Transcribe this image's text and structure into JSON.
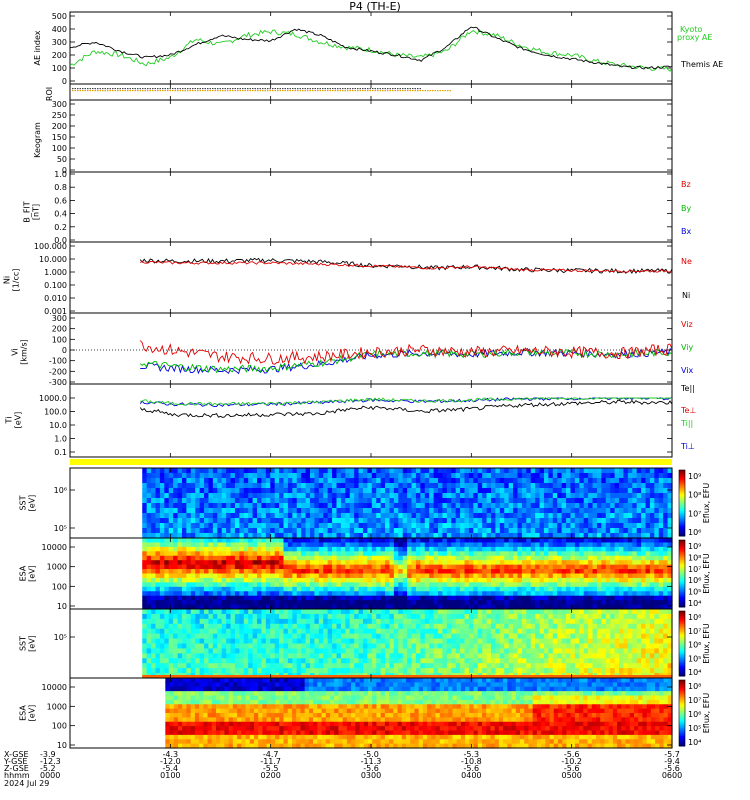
{
  "title": "P4  (TH-E)",
  "colors": {
    "kyoto": "#22cc22",
    "themis": "#000000",
    "bz": "#e00000",
    "by": "#00bb00",
    "bx": "#0000dd",
    "ne": "#e00000",
    "ni": "#000000",
    "vz": "#e00000",
    "vy": "#00bb00",
    "vx": "#0000dd",
    "te": "#000000",
    "teperp": "#e00000",
    "tipar": "#22cc22",
    "tiperp": "#0000dd",
    "roi_bar": "#ffff00"
  },
  "panels": {
    "ae": {
      "ylabel": "AE index",
      "ticks": [
        "500",
        "400",
        "300",
        "200",
        "100",
        "0"
      ],
      "legend_kyoto": "Kyoto\nproxy AE",
      "legend_themis": "Themis AE"
    },
    "roi": {
      "ylabel": "ROI"
    },
    "keogram": {
      "ylabel": "Keogram",
      "ticks": [
        "300",
        "250",
        "200",
        "150",
        "100",
        "50",
        "0"
      ]
    },
    "bfit": {
      "ylabel": "B_FIT\n[nT]",
      "ticks": [
        "1.0",
        "0.8",
        "0.6",
        "0.4",
        "0.2",
        "0.0"
      ],
      "legend": [
        "Bz",
        "By",
        "Bx"
      ]
    },
    "ni": {
      "ylabel": "Ni\n[1/cc]",
      "ticks": [
        "100.000",
        "10.000",
        "1.000",
        "0.100",
        "0.010",
        "0.001"
      ],
      "legend": [
        "Ne",
        "Ni"
      ]
    },
    "vi": {
      "ylabel": "Vi\n[km/s]",
      "ticks": [
        "300",
        "200",
        "100",
        "0",
        "-100",
        "-200",
        "-300"
      ],
      "legend": [
        "Viz",
        "Viy",
        "Vix"
      ]
    },
    "ti": {
      "ylabel": "Ti\n[eV]",
      "ticks": [
        "1000.0",
        "100.0",
        "10.0",
        "1.0",
        "0.1"
      ],
      "legend": [
        "Te||",
        "Te⊥",
        "Ti||",
        "Ti⊥"
      ]
    },
    "sst_e": {
      "ylabel": "SST\n[eV]",
      "ticks": [
        "10⁶",
        "10⁵"
      ],
      "cbar_ticks": [
        "10⁹",
        "10⁸",
        "10⁷",
        "10⁶"
      ],
      "cbar_label": "Eflux, EFU"
    },
    "esa_e": {
      "ylabel": "ESA\n[eV]",
      "ticks": [
        "10000",
        "1000",
        "100",
        "10"
      ],
      "cbar_ticks": [
        "10⁹",
        "10⁸",
        "10⁷",
        "10⁶",
        "10⁵",
        "10⁴"
      ],
      "cbar_label": "Eflux, EFU"
    },
    "sst_i": {
      "ylabel": "SST\n[eV]",
      "ticks": [
        "10⁵"
      ],
      "cbar_ticks": [
        "10⁸",
        "10⁷",
        "10⁶",
        "10⁵",
        "10⁴"
      ],
      "cbar_label": "Eflux, EFU"
    },
    "esa_i": {
      "ylabel": "ESA\n[eV]",
      "ticks": [
        "10000",
        "1000",
        "100",
        "10"
      ],
      "cbar_ticks": [
        "10⁸",
        "10⁷",
        "10⁶",
        "10⁵",
        "10⁴"
      ],
      "cbar_label": "Eflux, EFU"
    }
  },
  "footer": {
    "row_labels": [
      "X-GSE",
      "Y-GSE",
      "Z-GSE",
      "hhmm",
      "2024 Jul 29"
    ],
    "columns": [
      {
        "x": "-3.9",
        "y": "-12.3",
        "z": "-5.2",
        "t": "0000"
      },
      {
        "x": "-4.3",
        "y": "-12.0",
        "z": "-5.4",
        "t": "0100"
      },
      {
        "x": "-4.7",
        "y": "-11.7",
        "z": "-5.5",
        "t": "0200"
      },
      {
        "x": "-5.0",
        "y": "-11.3",
        "z": "-5.6",
        "t": "0300"
      },
      {
        "x": "-5.3",
        "y": "-10.8",
        "z": "-5.6",
        "t": "0400"
      },
      {
        "x": "-5.6",
        "y": "-10.2",
        "z": "-5.6",
        "t": "0500"
      },
      {
        "x": "-5.7",
        "y": "-9.4",
        "z": "-5.6",
        "t": "0600"
      }
    ]
  },
  "chart_data": {
    "type": "line",
    "x_unit": "hours since 2024-07-29 00:00 UT",
    "xlim": [
      0,
      6
    ],
    "series": [
      {
        "panel": "ae",
        "name": "Kyoto proxy AE",
        "x": [
          0,
          0.25,
          0.5,
          0.75,
          1.0,
          1.25,
          1.5,
          1.75,
          2.0,
          2.25,
          2.5,
          2.75,
          3.0,
          3.25,
          3.5,
          3.75,
          4.0,
          4.25,
          4.5,
          4.75,
          5.0,
          5.25,
          5.5,
          5.75,
          6.0
        ],
        "values": [
          120,
          230,
          200,
          130,
          180,
          320,
          280,
          350,
          380,
          360,
          300,
          260,
          240,
          200,
          180,
          230,
          390,
          350,
          270,
          220,
          200,
          150,
          120,
          100,
          90
        ]
      },
      {
        "panel": "ae",
        "name": "Themis AE",
        "x": [
          0,
          0.25,
          0.5,
          0.75,
          1.0,
          1.25,
          1.5,
          1.75,
          2.0,
          2.25,
          2.5,
          2.75,
          3.0,
          3.25,
          3.5,
          3.75,
          4.0,
          4.25,
          4.5,
          4.75,
          5.0,
          5.25,
          5.5,
          5.75,
          6.0
        ],
        "values": [
          260,
          300,
          230,
          180,
          200,
          280,
          350,
          320,
          310,
          400,
          350,
          260,
          230,
          200,
          160,
          260,
          420,
          330,
          250,
          200,
          170,
          140,
          110,
          100,
          110
        ]
      },
      {
        "panel": "ni",
        "name": "Ne",
        "x": [
          0.7,
          1.0,
          1.5,
          2.0,
          2.5,
          3.0,
          3.3,
          3.6,
          4.0,
          4.5,
          5.0,
          5.5,
          6.0
        ],
        "values": [
          6,
          5,
          5,
          5,
          4,
          3,
          2.5,
          2,
          2.5,
          1.5,
          1.3,
          1.2,
          1.2
        ]
      },
      {
        "panel": "ni",
        "name": "Ni",
        "x": [
          0.7,
          1.0,
          1.5,
          2.0,
          2.5,
          3.0,
          3.3,
          3.6,
          4.0,
          4.5,
          5.0,
          5.5,
          6.0
        ],
        "values": [
          8,
          7,
          7,
          8,
          6,
          3,
          3,
          2,
          2.5,
          1.5,
          1.3,
          1.2,
          1.2
        ]
      },
      {
        "panel": "vi",
        "name": "Viz",
        "x": [
          0.7,
          1.0,
          1.5,
          2.0,
          2.5,
          3.0,
          3.5,
          4.0,
          4.5,
          5.0,
          5.5,
          6.0
        ],
        "values": [
          50,
          0,
          -60,
          -80,
          -60,
          -20,
          0,
          -20,
          -10,
          -20,
          -30,
          10
        ]
      },
      {
        "panel": "vi",
        "name": "Viy",
        "x": [
          0.7,
          1.0,
          1.5,
          2.0,
          2.5,
          3.0,
          3.5,
          4.0,
          4.5,
          5.0,
          5.5,
          6.0
        ],
        "values": [
          -120,
          -150,
          -180,
          -170,
          -120,
          -40,
          -30,
          -40,
          -20,
          -30,
          -40,
          -20
        ]
      },
      {
        "panel": "vi",
        "name": "Vix",
        "x": [
          0.7,
          1.0,
          1.5,
          2.0,
          2.5,
          3.0,
          3.5,
          4.0,
          4.5,
          5.0,
          5.5,
          6.0
        ],
        "values": [
          -150,
          -170,
          -190,
          -180,
          -130,
          -50,
          -30,
          -40,
          -20,
          -30,
          -40,
          -20
        ]
      },
      {
        "panel": "ti",
        "name": "Te||",
        "x": [
          0.7,
          1.0,
          1.5,
          2.0,
          2.5,
          3.0,
          3.5,
          4.0,
          4.5,
          5.0,
          5.5,
          6.0
        ],
        "values": [
          150,
          60,
          50,
          60,
          70,
          200,
          100,
          150,
          300,
          400,
          500,
          450
        ]
      },
      {
        "panel": "ti",
        "name": "Ti||",
        "x": [
          0.7,
          1.0,
          1.5,
          2.0,
          2.5,
          3.0,
          3.5,
          4.0,
          4.5,
          5.0,
          5.5,
          6.0
        ],
        "values": [
          600,
          400,
          350,
          400,
          500,
          800,
          600,
          700,
          900,
          1000,
          1100,
          1000
        ]
      },
      {
        "panel": "ti",
        "name": "Ti⊥",
        "x": [
          0.7,
          1.0,
          1.5,
          2.0,
          2.5,
          3.0,
          3.5,
          4.0,
          4.5,
          5.0,
          5.5,
          6.0
        ],
        "values": [
          500,
          350,
          300,
          350,
          450,
          700,
          550,
          650,
          850,
          950,
          1000,
          950
        ]
      }
    ]
  }
}
